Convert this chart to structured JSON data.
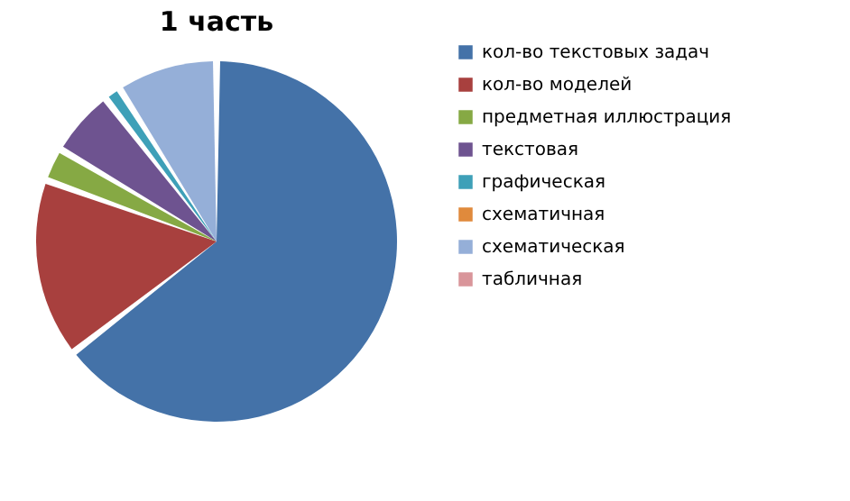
{
  "chart_data": {
    "type": "pie",
    "title": "1 часть",
    "categories": [
      "кол-во текстовых задач",
      "кол-во моделей",
      "предметная иллюстрация",
      "текстовая",
      "графическая",
      "схематичная",
      "схематическая",
      "табличная"
    ],
    "values": [
      64.5,
      16,
      3,
      6,
      1.5,
      0,
      9,
      0
    ],
    "colors": [
      "#4472a8",
      "#a8403e",
      "#86a944",
      "#6e5390",
      "#3ea0b8",
      "#e08a3c",
      "#95afd8",
      "#d9959a"
    ],
    "legend": "right"
  }
}
